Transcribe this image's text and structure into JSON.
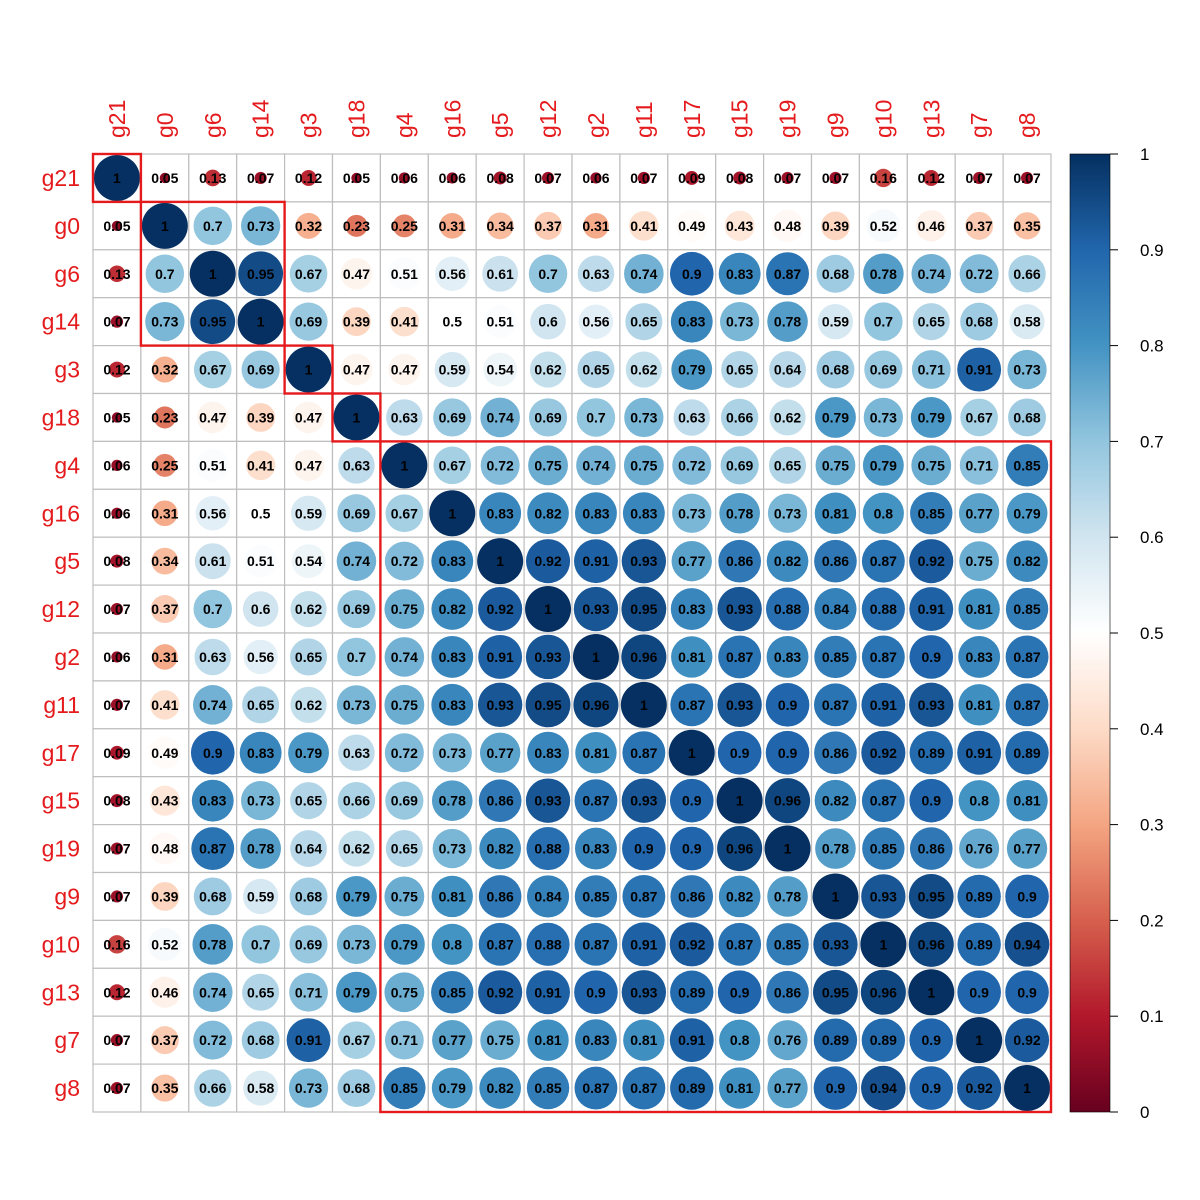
{
  "chart_data": {
    "type": "heatmap",
    "variables": [
      "g21",
      "g0",
      "g6",
      "g14",
      "g3",
      "g18",
      "g4",
      "g16",
      "g5",
      "g12",
      "g2",
      "g11",
      "g17",
      "g15",
      "g19",
      "g9",
      "g10",
      "g13",
      "g7",
      "g8"
    ],
    "matrix": [
      [
        1,
        0.05,
        0.13,
        0.07,
        0.12,
        0.05,
        0.06,
        0.06,
        0.08,
        0.07,
        0.06,
        0.07,
        0.09,
        0.08,
        0.07,
        0.07,
        0.16,
        0.12,
        0.07,
        0.07
      ],
      [
        0.05,
        1,
        0.7,
        0.73,
        0.32,
        0.23,
        0.25,
        0.31,
        0.34,
        0.37,
        0.31,
        0.41,
        0.49,
        0.43,
        0.48,
        0.39,
        0.52,
        0.46,
        0.37,
        0.35
      ],
      [
        0.13,
        0.7,
        1,
        0.95,
        0.67,
        0.47,
        0.51,
        0.56,
        0.61,
        0.7,
        0.63,
        0.74,
        0.9,
        0.83,
        0.87,
        0.68,
        0.78,
        0.74,
        0.72,
        0.66
      ],
      [
        0.07,
        0.73,
        0.95,
        1,
        0.69,
        0.39,
        0.41,
        0.5,
        0.51,
        0.6,
        0.56,
        0.65,
        0.83,
        0.73,
        0.78,
        0.59,
        0.7,
        0.65,
        0.68,
        0.58
      ],
      [
        0.12,
        0.32,
        0.67,
        0.69,
        1,
        0.47,
        0.47,
        0.59,
        0.54,
        0.62,
        0.65,
        0.62,
        0.79,
        0.65,
        0.64,
        0.68,
        0.69,
        0.71,
        0.91,
        0.73
      ],
      [
        0.05,
        0.23,
        0.47,
        0.39,
        0.47,
        1,
        0.63,
        0.69,
        0.74,
        0.69,
        0.7,
        0.73,
        0.63,
        0.66,
        0.62,
        0.79,
        0.73,
        0.79,
        0.67,
        0.68
      ],
      [
        0.06,
        0.25,
        0.51,
        0.41,
        0.47,
        0.63,
        1,
        0.67,
        0.72,
        0.75,
        0.74,
        0.75,
        0.72,
        0.69,
        0.65,
        0.75,
        0.79,
        0.75,
        0.71,
        0.85
      ],
      [
        0.06,
        0.31,
        0.56,
        0.5,
        0.59,
        0.69,
        0.67,
        1,
        0.83,
        0.82,
        0.83,
        0.83,
        0.73,
        0.78,
        0.73,
        0.81,
        0.8,
        0.85,
        0.77,
        0.79
      ],
      [
        0.08,
        0.34,
        0.61,
        0.51,
        0.54,
        0.74,
        0.72,
        0.83,
        1,
        0.92,
        0.91,
        0.93,
        0.77,
        0.86,
        0.82,
        0.86,
        0.87,
        0.92,
        0.75,
        0.82
      ],
      [
        0.07,
        0.37,
        0.7,
        0.6,
        0.62,
        0.69,
        0.75,
        0.82,
        0.92,
        1,
        0.93,
        0.95,
        0.83,
        0.93,
        0.88,
        0.84,
        0.88,
        0.91,
        0.81,
        0.85
      ],
      [
        0.06,
        0.31,
        0.63,
        0.56,
        0.65,
        0.7,
        0.74,
        0.83,
        0.91,
        0.93,
        1,
        0.96,
        0.81,
        0.87,
        0.83,
        0.85,
        0.87,
        0.9,
        0.83,
        0.87
      ],
      [
        0.07,
        0.41,
        0.74,
        0.65,
        0.62,
        0.73,
        0.75,
        0.83,
        0.93,
        0.95,
        0.96,
        1,
        0.87,
        0.93,
        0.9,
        0.87,
        0.91,
        0.93,
        0.81,
        0.87
      ],
      [
        0.09,
        0.49,
        0.9,
        0.83,
        0.79,
        0.63,
        0.72,
        0.73,
        0.77,
        0.83,
        0.81,
        0.87,
        1,
        0.9,
        0.9,
        0.86,
        0.92,
        0.89,
        0.91,
        0.89
      ],
      [
        0.08,
        0.43,
        0.83,
        0.73,
        0.65,
        0.66,
        0.69,
        0.78,
        0.86,
        0.93,
        0.87,
        0.93,
        0.9,
        1,
        0.96,
        0.82,
        0.87,
        0.9,
        0.8,
        0.81
      ],
      [
        0.07,
        0.48,
        0.87,
        0.78,
        0.64,
        0.62,
        0.65,
        0.73,
        0.82,
        0.88,
        0.83,
        0.9,
        0.9,
        0.96,
        1,
        0.78,
        0.85,
        0.86,
        0.76,
        0.77
      ],
      [
        0.07,
        0.39,
        0.68,
        0.59,
        0.68,
        0.79,
        0.75,
        0.81,
        0.86,
        0.84,
        0.85,
        0.87,
        0.86,
        0.82,
        0.78,
        1,
        0.93,
        0.95,
        0.89,
        0.9
      ],
      [
        0.16,
        0.52,
        0.78,
        0.7,
        0.69,
        0.73,
        0.79,
        0.8,
        0.87,
        0.88,
        0.87,
        0.91,
        0.92,
        0.87,
        0.85,
        0.93,
        1,
        0.96,
        0.89,
        0.94
      ],
      [
        0.12,
        0.46,
        0.74,
        0.65,
        0.71,
        0.79,
        0.75,
        0.85,
        0.92,
        0.91,
        0.9,
        0.93,
        0.89,
        0.9,
        0.86,
        0.95,
        0.96,
        1,
        0.9,
        0.9
      ],
      [
        0.07,
        0.37,
        0.72,
        0.68,
        0.91,
        0.67,
        0.71,
        0.77,
        0.75,
        0.81,
        0.83,
        0.81,
        0.91,
        0.8,
        0.76,
        0.89,
        0.89,
        0.9,
        1,
        0.92
      ],
      [
        0.07,
        0.35,
        0.66,
        0.58,
        0.73,
        0.68,
        0.85,
        0.79,
        0.82,
        0.85,
        0.87,
        0.87,
        0.89,
        0.81,
        0.77,
        0.9,
        0.94,
        0.9,
        0.92,
        1
      ]
    ],
    "clusters": [
      {
        "from": 0,
        "to": 0
      },
      {
        "from": 1,
        "to": 3
      },
      {
        "from": 4,
        "to": 4
      },
      {
        "from": 5,
        "to": 5
      },
      {
        "from": 6,
        "to": 19
      }
    ],
    "colorbar": {
      "ticks": [
        "0",
        "0.1",
        "0.2",
        "0.3",
        "0.4",
        "0.5",
        "0.6",
        "0.7",
        "0.8",
        "0.9",
        "1"
      ],
      "range": [
        0,
        1
      ],
      "stops": [
        {
          "v": 0.0,
          "color": "#67001F"
        },
        {
          "v": 0.1,
          "color": "#B2182B"
        },
        {
          "v": 0.2,
          "color": "#D6604D"
        },
        {
          "v": 0.3,
          "color": "#F4A582"
        },
        {
          "v": 0.4,
          "color": "#FDDBC7"
        },
        {
          "v": 0.5,
          "color": "#FFFFFF"
        },
        {
          "v": 0.6,
          "color": "#D1E5F0"
        },
        {
          "v": 0.7,
          "color": "#92C5DE"
        },
        {
          "v": 0.8,
          "color": "#4393C3"
        },
        {
          "v": 0.9,
          "color": "#2166AC"
        },
        {
          "v": 1.0,
          "color": "#053061"
        }
      ]
    },
    "label_color": "#E41A1C",
    "cluster_box_color": "#E41A1C",
    "grid_color": "#BEBEBE",
    "method": "circle",
    "ordering": "hierarchical clustering",
    "number_labels": true
  }
}
